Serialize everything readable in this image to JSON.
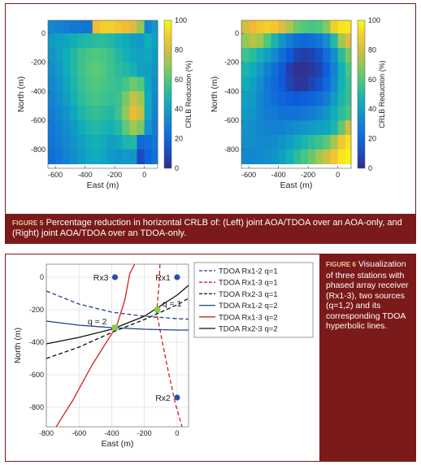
{
  "figure5": {
    "label": "FIGURE 5",
    "caption": "Percentage reduction in horizontal CRLB of: (Left) joint AOA/TDOA over an AOA-only, and (Right) joint AOA/TDOA over an TDOA-only.",
    "colorbar_label": "CRLB Reduction (%)"
  },
  "figure6": {
    "label": "FIGURE 6",
    "caption": "Visualization of three stations with phased array receiver (Rx1-3), two sources (q=1,2) and its corresponding TDOA hyperbolic lines."
  },
  "chart_data": [
    {
      "type": "heatmap",
      "panel": "left",
      "xlabel": "East (m)",
      "ylabel": "North (m)",
      "xticks": [
        -600,
        -400,
        -200,
        0
      ],
      "yticks": [
        0,
        -200,
        -400,
        -600,
        -800
      ],
      "xlim": [
        -650,
        90
      ],
      "ylim": [
        -930,
        90
      ],
      "colorbar": {
        "label": "CRLB Reduction (%)",
        "ticks": [
          0,
          20,
          40,
          60,
          80,
          100
        ],
        "range": [
          0,
          100
        ]
      },
      "rows_north": [
        50,
        -50,
        -150,
        -250,
        -350,
        -450,
        -550,
        -650,
        -750,
        -850
      ],
      "cols_east": [
        -625,
        -575,
        -525,
        -475,
        -425,
        -375,
        -325,
        -275,
        -225,
        -175,
        -125,
        -75,
        -25,
        25,
        75
      ],
      "values": [
        [
          32,
          30,
          28,
          26,
          25,
          24,
          86,
          90,
          90,
          88,
          86,
          82,
          70,
          30,
          38
        ],
        [
          38,
          40,
          42,
          45,
          48,
          50,
          52,
          52,
          50,
          46,
          44,
          40,
          38,
          45,
          40
        ],
        [
          36,
          40,
          45,
          50,
          55,
          58,
          60,
          58,
          55,
          50,
          46,
          42,
          40,
          42,
          38
        ],
        [
          34,
          38,
          44,
          50,
          56,
          60,
          62,
          60,
          56,
          52,
          50,
          46,
          40,
          40,
          36
        ],
        [
          32,
          36,
          42,
          48,
          54,
          58,
          60,
          58,
          56,
          54,
          58,
          65,
          60,
          42,
          34
        ],
        [
          30,
          34,
          40,
          46,
          52,
          56,
          58,
          56,
          54,
          56,
          66,
          78,
          72,
          44,
          32
        ],
        [
          28,
          32,
          36,
          42,
          48,
          52,
          54,
          52,
          50,
          56,
          70,
          84,
          78,
          42,
          30
        ],
        [
          26,
          30,
          34,
          38,
          44,
          48,
          50,
          48,
          46,
          50,
          62,
          72,
          66,
          36,
          28
        ],
        [
          24,
          28,
          32,
          36,
          40,
          44,
          46,
          44,
          40,
          42,
          48,
          50,
          20,
          22,
          26
        ],
        [
          22,
          26,
          30,
          34,
          38,
          42,
          44,
          42,
          38,
          36,
          38,
          36,
          10,
          18,
          24
        ]
      ]
    },
    {
      "type": "heatmap",
      "panel": "right",
      "xlabel": "East (m)",
      "ylabel": "North (m)",
      "xticks": [
        -600,
        -400,
        -200,
        0
      ],
      "yticks": [
        0,
        -200,
        -400,
        -600,
        -800
      ],
      "xlim": [
        -650,
        90
      ],
      "ylim": [
        -930,
        90
      ],
      "colorbar": {
        "label": "CRLB Reduction (%)",
        "ticks": [
          0,
          20,
          40,
          60,
          80,
          100
        ],
        "range": [
          0,
          100
        ]
      },
      "rows_north": [
        50,
        -50,
        -150,
        -250,
        -350,
        -450,
        -550,
        -650,
        -750,
        -850
      ],
      "cols_east": [
        -625,
        -575,
        -525,
        -475,
        -425,
        -375,
        -325,
        -275,
        -225,
        -175,
        -125,
        -75,
        -25,
        25,
        75
      ],
      "values": [
        [
          80,
          85,
          88,
          90,
          88,
          82,
          74,
          64,
          60,
          58,
          60,
          68,
          90,
          95,
          96
        ],
        [
          70,
          76,
          72,
          60,
          48,
          36,
          28,
          22,
          20,
          22,
          26,
          34,
          50,
          72,
          82
        ],
        [
          56,
          52,
          46,
          40,
          32,
          22,
          14,
          8,
          6,
          8,
          12,
          22,
          34,
          52,
          66
        ],
        [
          48,
          44,
          38,
          30,
          22,
          14,
          6,
          2,
          2,
          4,
          8,
          16,
          30,
          46,
          58
        ],
        [
          44,
          40,
          34,
          26,
          20,
          14,
          8,
          4,
          4,
          8,
          12,
          20,
          32,
          46,
          54
        ],
        [
          40,
          38,
          32,
          26,
          22,
          18,
          16,
          14,
          16,
          18,
          22,
          28,
          38,
          48,
          54
        ],
        [
          38,
          36,
          32,
          28,
          26,
          24,
          24,
          24,
          26,
          28,
          32,
          36,
          44,
          52,
          58
        ],
        [
          36,
          34,
          32,
          30,
          30,
          30,
          32,
          34,
          36,
          38,
          40,
          42,
          48,
          62,
          80
        ],
        [
          34,
          34,
          32,
          32,
          34,
          36,
          40,
          44,
          48,
          52,
          56,
          62,
          72,
          88,
          95
        ],
        [
          32,
          32,
          32,
          34,
          36,
          40,
          46,
          52,
          58,
          64,
          72,
          80,
          88,
          95,
          98
        ]
      ]
    },
    {
      "type": "line",
      "xlabel": "East (m)",
      "ylabel": "North (m)",
      "xticks": [
        -800,
        -600,
        -400,
        -200,
        0
      ],
      "yticks": [
        0,
        -200,
        -400,
        -600,
        -800
      ],
      "xlim": [
        -800,
        70
      ],
      "ylim": [
        -920,
        80
      ],
      "legend_position": "top-right",
      "series": [
        {
          "name": "TDOA Rx1-2 q=1",
          "color": "#1f3f8f",
          "dash": "dashed",
          "x": [
            -800,
            -600,
            -400,
            -200,
            0,
            70
          ],
          "y": [
            -85,
            -165,
            -215,
            -240,
            -255,
            -258
          ]
        },
        {
          "name": "TDOA Rx1-3 q=1",
          "color": "#d42020",
          "dash": "dashed",
          "x": [
            -105,
            -110,
            -120,
            -125,
            -90,
            -50,
            -10,
            30
          ],
          "y": [
            80,
            -40,
            -150,
            -220,
            -400,
            -600,
            -780,
            -920
          ]
        },
        {
          "name": "TDOA Rx2-3 q=1",
          "color": "#111111",
          "dash": "dashed",
          "x": [
            -800,
            -600,
            -400,
            -200,
            0,
            70
          ],
          "y": [
            -500,
            -430,
            -340,
            -260,
            -170,
            -130
          ]
        },
        {
          "name": "TDOA Rx1-2 q=2",
          "color": "#1f3f8f",
          "dash": "solid",
          "x": [
            -800,
            -600,
            -400,
            -200,
            0,
            70
          ],
          "y": [
            -270,
            -295,
            -310,
            -320,
            -325,
            -325
          ]
        },
        {
          "name": "TDOA Rx1-3 q=2",
          "color": "#d42020",
          "dash": "solid",
          "x": [
            -740,
            -640,
            -520,
            -420,
            -370,
            -320,
            -290,
            -260
          ],
          "y": [
            -920,
            -760,
            -540,
            -380,
            -300,
            -140,
            20,
            80
          ]
        },
        {
          "name": "TDOA Rx2-3 q=2",
          "color": "#111111",
          "dash": "solid",
          "x": [
            -800,
            -600,
            -400,
            -200,
            0,
            70
          ],
          "y": [
            -410,
            -370,
            -320,
            -240,
            -110,
            -50
          ]
        }
      ],
      "stations": [
        {
          "label": "Rx1",
          "x": 0,
          "y": 0
        },
        {
          "label": "Rx2",
          "x": 0,
          "y": -740
        },
        {
          "label": "Rx3",
          "x": -380,
          "y": 0
        }
      ],
      "sources": [
        {
          "label": "q = 1",
          "x": -120,
          "y": -200
        },
        {
          "label": "q = 2",
          "x": -380,
          "y": -310
        }
      ]
    }
  ]
}
